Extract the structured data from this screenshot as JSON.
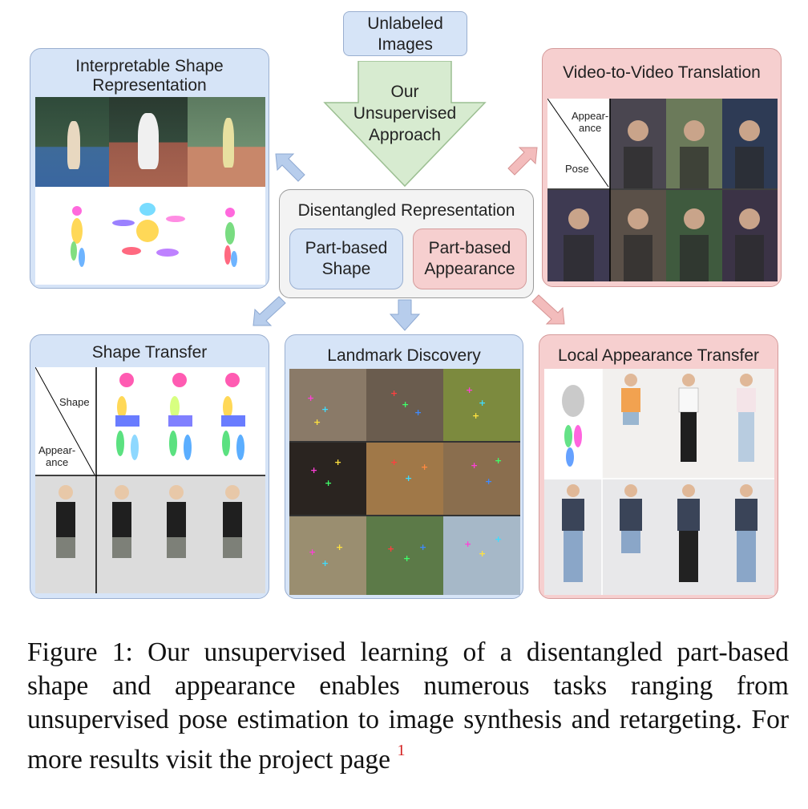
{
  "top": {
    "line1": "Unlabeled",
    "line2": "Images"
  },
  "approach": {
    "line1": "Our",
    "line2": "Unsupervised",
    "line3": "Approach"
  },
  "center": {
    "title": "Disentangled Representation",
    "shape_line1": "Part-based",
    "shape_line2": "Shape",
    "appearance_line1": "Part-based",
    "appearance_line2": "Appearance"
  },
  "panels": {
    "interpretable": {
      "line1": "Interpretable Shape",
      "line2": "Representation"
    },
    "video": {
      "title": "Video-to-Video Translation",
      "appearance_l1": "Appear-",
      "appearance_l2": "ance",
      "pose": "Pose"
    },
    "shape_transfer": {
      "title": "Shape Transfer",
      "shape": "Shape",
      "appearance_l1": "Appear-",
      "appearance_l2": "ance"
    },
    "landmark": {
      "title": "Landmark Discovery"
    },
    "local": {
      "title": "Local Appearance Transfer"
    }
  },
  "caption": {
    "text": "Figure 1: Our unsupervised learning of a disentangled part-based shape and appearance enables numerous tasks ranging from unsupervised pose estimation to image synthesis and retargeting. For more results visit the project page",
    "footnote": "1"
  },
  "colors": {
    "blue_panel": "#d6e4f7",
    "pink_panel": "#f6cfcf",
    "green_arrow": "#d7ebd0",
    "arrow_blue": "#b7cdec",
    "arrow_pink": "#f3bcbc"
  }
}
